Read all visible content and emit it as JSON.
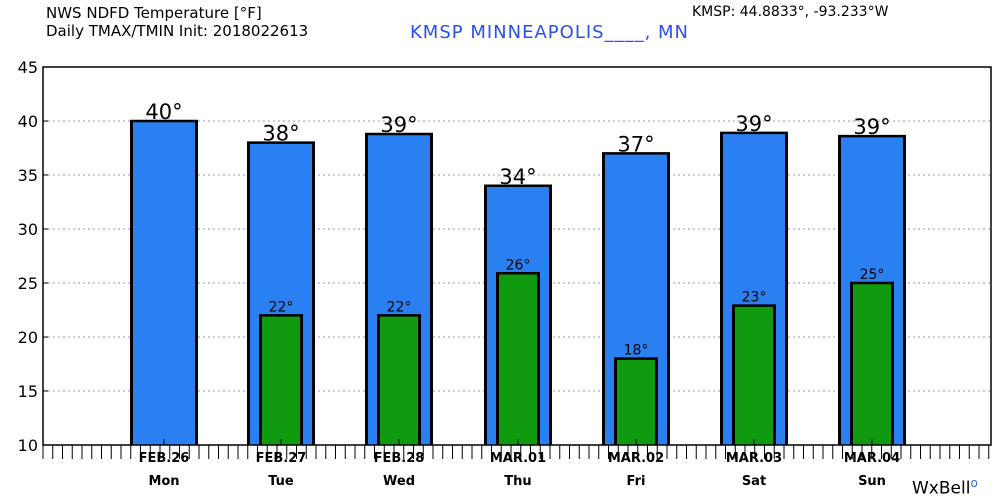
{
  "header": {
    "line1": "NWS NDFD Temperature [°F]",
    "line2": "Daily TMAX/TMIN Init: 2018022613",
    "station": "KMSP MINNEAPOLIS____, MN",
    "coords": "KMSP: 44.8833°, -93.233°W",
    "credit": "WxBell"
  },
  "colors": {
    "tmax": "#2a80f0",
    "tmin": "#0f9a0f",
    "outline": "#000000",
    "grid": "#999999"
  },
  "chart_data": {
    "type": "bar",
    "title": "NWS NDFD Temperature [°F]",
    "subtitle": "Daily TMAX/TMIN Init: 2018022613",
    "ylim": [
      10,
      45
    ],
    "yticks": [
      10,
      15,
      20,
      25,
      30,
      35,
      40,
      45
    ],
    "grid": true,
    "categories": [
      "FEB.26",
      "FEB.27",
      "FEB.28",
      "MAR.01",
      "MAR.02",
      "MAR.03",
      "MAR.04"
    ],
    "days": [
      "Mon",
      "Tue",
      "Wed",
      "Thu",
      "Fri",
      "Sat",
      "Sun"
    ],
    "series": [
      {
        "values": [
          40,
          38,
          39,
          34,
          37,
          39,
          39
        ],
        "labels": [
          "40°",
          "38°",
          "39°",
          "34°",
          "37°",
          "39°",
          "39°"
        ]
      },
      {
        "values": [
          null,
          22,
          22,
          26,
          18,
          23,
          25
        ],
        "labels": [
          "",
          "22°",
          "22°",
          "26°",
          "18°",
          "23°",
          "25°"
        ]
      }
    ],
    "tmax_exact": [
      40,
      38,
      38.8,
      34,
      37,
      38.9,
      38.6
    ],
    "tmin_exact": [
      null,
      22,
      22,
      25.9,
      18,
      22.9,
      25
    ]
  }
}
